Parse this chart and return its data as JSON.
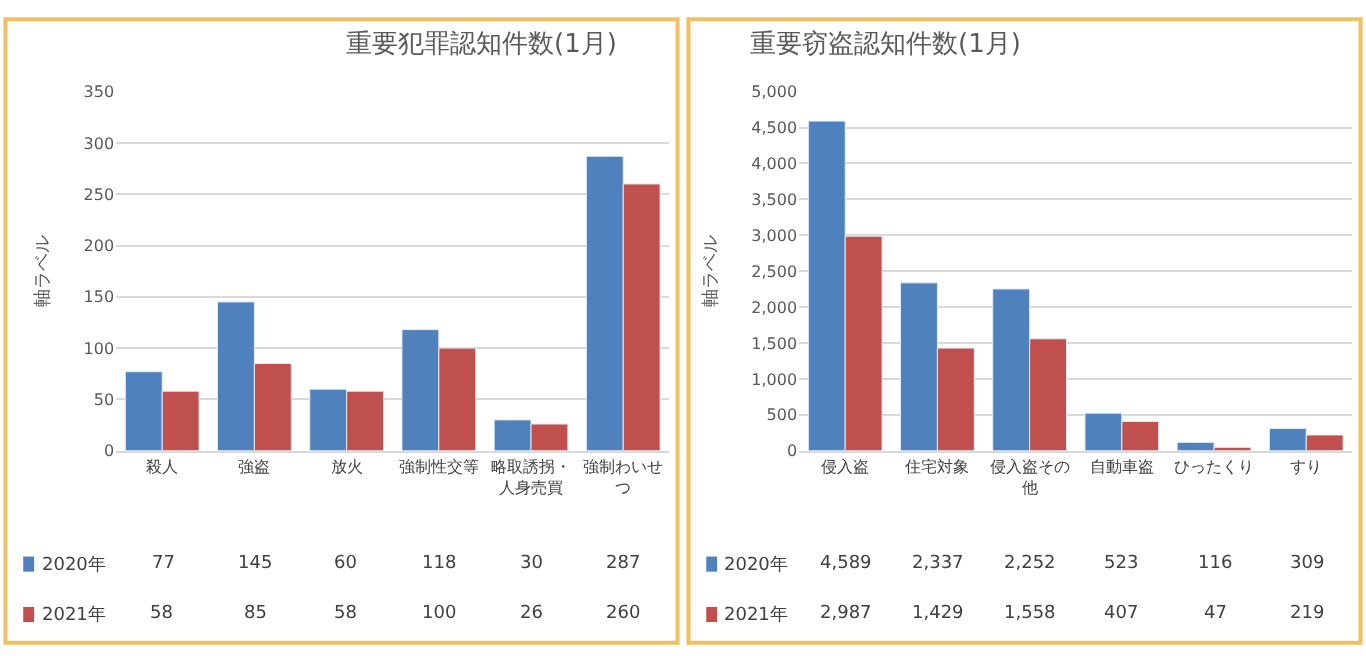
{
  "chart_data": [
    {
      "type": "bar",
      "title": "重要犯罪認知件数(1月)",
      "ylabel": "軸ラベル",
      "categories": [
        "殺人",
        "強盗",
        "放火",
        "強制性交等",
        "略取誘拐・人身売買",
        "強制わいせつ"
      ],
      "series": [
        {
          "name": "2020年",
          "color": "#4f81bd",
          "values": [
            77,
            145,
            60,
            118,
            30,
            287
          ]
        },
        {
          "name": "2021年",
          "color": "#c0504d",
          "values": [
            58,
            85,
            58,
            100,
            26,
            260
          ]
        }
      ],
      "ylim": [
        0,
        350
      ],
      "yticks": [
        0,
        50,
        100,
        150,
        200,
        250,
        300,
        350
      ],
      "grid": "y",
      "legend": "bottom",
      "data_labels": true
    },
    {
      "type": "bar",
      "title": "重要窃盗認知件数(1月)",
      "ylabel": "軸ラベル",
      "categories": [
        "侵入盗",
        "住宅対象",
        "侵入盗その他",
        "自動車盗",
        "ひったくり",
        "すり"
      ],
      "series": [
        {
          "name": "2020年",
          "color": "#4f81bd",
          "values": [
            4589,
            2337,
            2252,
            523,
            116,
            309
          ],
          "value_labels": [
            "4,589",
            "2,337",
            "2,252",
            "523",
            "116",
            "309"
          ]
        },
        {
          "name": "2021年",
          "color": "#c0504d",
          "values": [
            2987,
            1429,
            1558,
            407,
            47,
            219
          ],
          "value_labels": [
            "2,987",
            "1,429",
            "1,558",
            "407",
            "47",
            "219"
          ]
        }
      ],
      "ylim": [
        0,
        5000
      ],
      "yticks": [
        0,
        {
          "value": 500,
          "label": "500"
        },
        {
          "value": 1000,
          "label": "1,000"
        },
        {
          "value": 1500,
          "label": "1,500"
        },
        {
          "value": 2000,
          "label": "2,000"
        },
        {
          "value": 2500,
          "label": "2,500"
        },
        {
          "value": 3000,
          "label": "3,000"
        },
        {
          "value": 3500,
          "label": "3,500"
        },
        {
          "value": 4000,
          "label": "4,000"
        },
        {
          "value": 4500,
          "label": "4,500"
        },
        {
          "value": 5000,
          "label": "5,000"
        }
      ],
      "grid": "y",
      "legend": "bottom"
    }
  ]
}
